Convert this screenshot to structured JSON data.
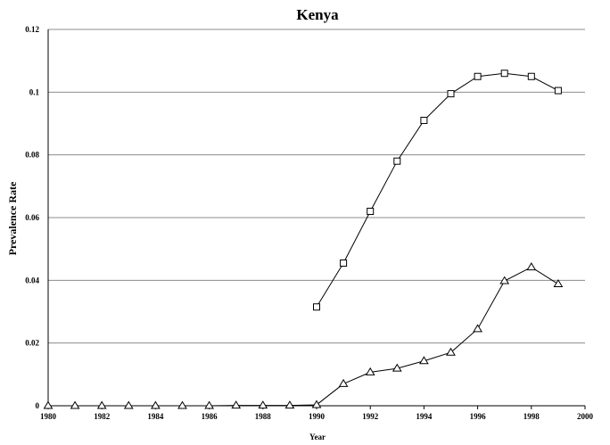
{
  "chart_data": {
    "type": "line",
    "title": "Kenya",
    "xlabel": "Year",
    "ylabel": "Prevalence Rate",
    "xlim": [
      1980,
      2000
    ],
    "ylim": [
      0,
      0.12
    ],
    "xticks": [
      "1980",
      "1982",
      "1984",
      "1986",
      "1988",
      "1990",
      "1992",
      "1994",
      "1996",
      "1998",
      "2000"
    ],
    "yticks": [
      "0",
      "0.02",
      "0.04",
      "0.06",
      "0.08",
      "0.1",
      "0.12"
    ],
    "grid": "horizontal",
    "series": [
      {
        "marker": "square",
        "x": [
          1990,
          1991,
          1992,
          1993,
          1994,
          1995,
          1996,
          1997,
          1998,
          1999
        ],
        "y": [
          0.0315,
          0.0455,
          0.062,
          0.078,
          0.091,
          0.0995,
          0.105,
          0.106,
          0.105,
          0.1005
        ]
      },
      {
        "marker": "triangle",
        "x": [
          1980,
          1981,
          1982,
          1983,
          1984,
          1985,
          1986,
          1987,
          1988,
          1989,
          1990,
          1991,
          1992,
          1993,
          1994,
          1995,
          1996,
          1997,
          1998,
          1999
        ],
        "y": [
          0,
          0,
          0,
          0,
          0,
          0,
          0,
          0.0001,
          0.0001,
          0.0001,
          0.0003,
          0.007,
          0.0107,
          0.0119,
          0.0143,
          0.017,
          0.0245,
          0.0398,
          0.0442,
          0.0388
        ]
      }
    ]
  }
}
